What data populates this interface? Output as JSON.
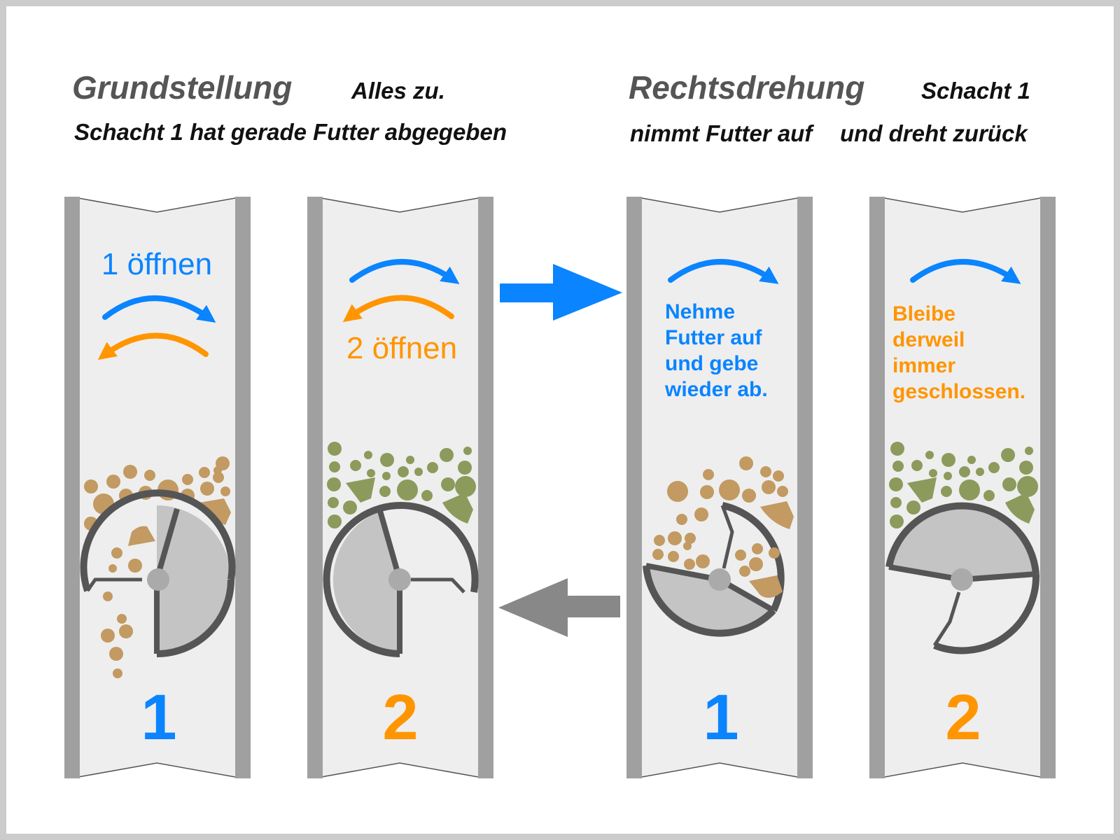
{
  "headings": {
    "left_title": "Grundstellung",
    "left_status": "Alles zu.",
    "left_sub": "Schacht 1 hat gerade Futter abgegeben",
    "right_title": "Rechtsdrehung",
    "right_status": "Schacht 1",
    "right_sub_a": "nimmt Futter auf",
    "right_sub_b": "und dreht zurück"
  },
  "shafts": [
    {
      "number": "1",
      "note": "1 öffnen"
    },
    {
      "number": "2",
      "note": "2 öffnen"
    },
    {
      "number": "1",
      "note_lines": [
        "Nehme",
        "Futter auf",
        "und gebe",
        "wieder ab."
      ]
    },
    {
      "number": "2",
      "note_lines": [
        "Bleibe",
        "derweil",
        "immer",
        "geschlossen."
      ]
    }
  ],
  "colors": {
    "blue": "#0a84ff",
    "orange": "#ff9500",
    "wall": "#a0a0a0",
    "shaft_bg": "#eeeeee",
    "rotor_ring": "#555555",
    "rotor_fill": "#c4c4c4",
    "food_brown": "#c29a62",
    "food_green": "#8c9a5c",
    "arrow_gray": "#888888"
  },
  "icons": {
    "forward_arrow": "arrow-right-icon",
    "back_arrow": "arrow-left-icon"
  }
}
